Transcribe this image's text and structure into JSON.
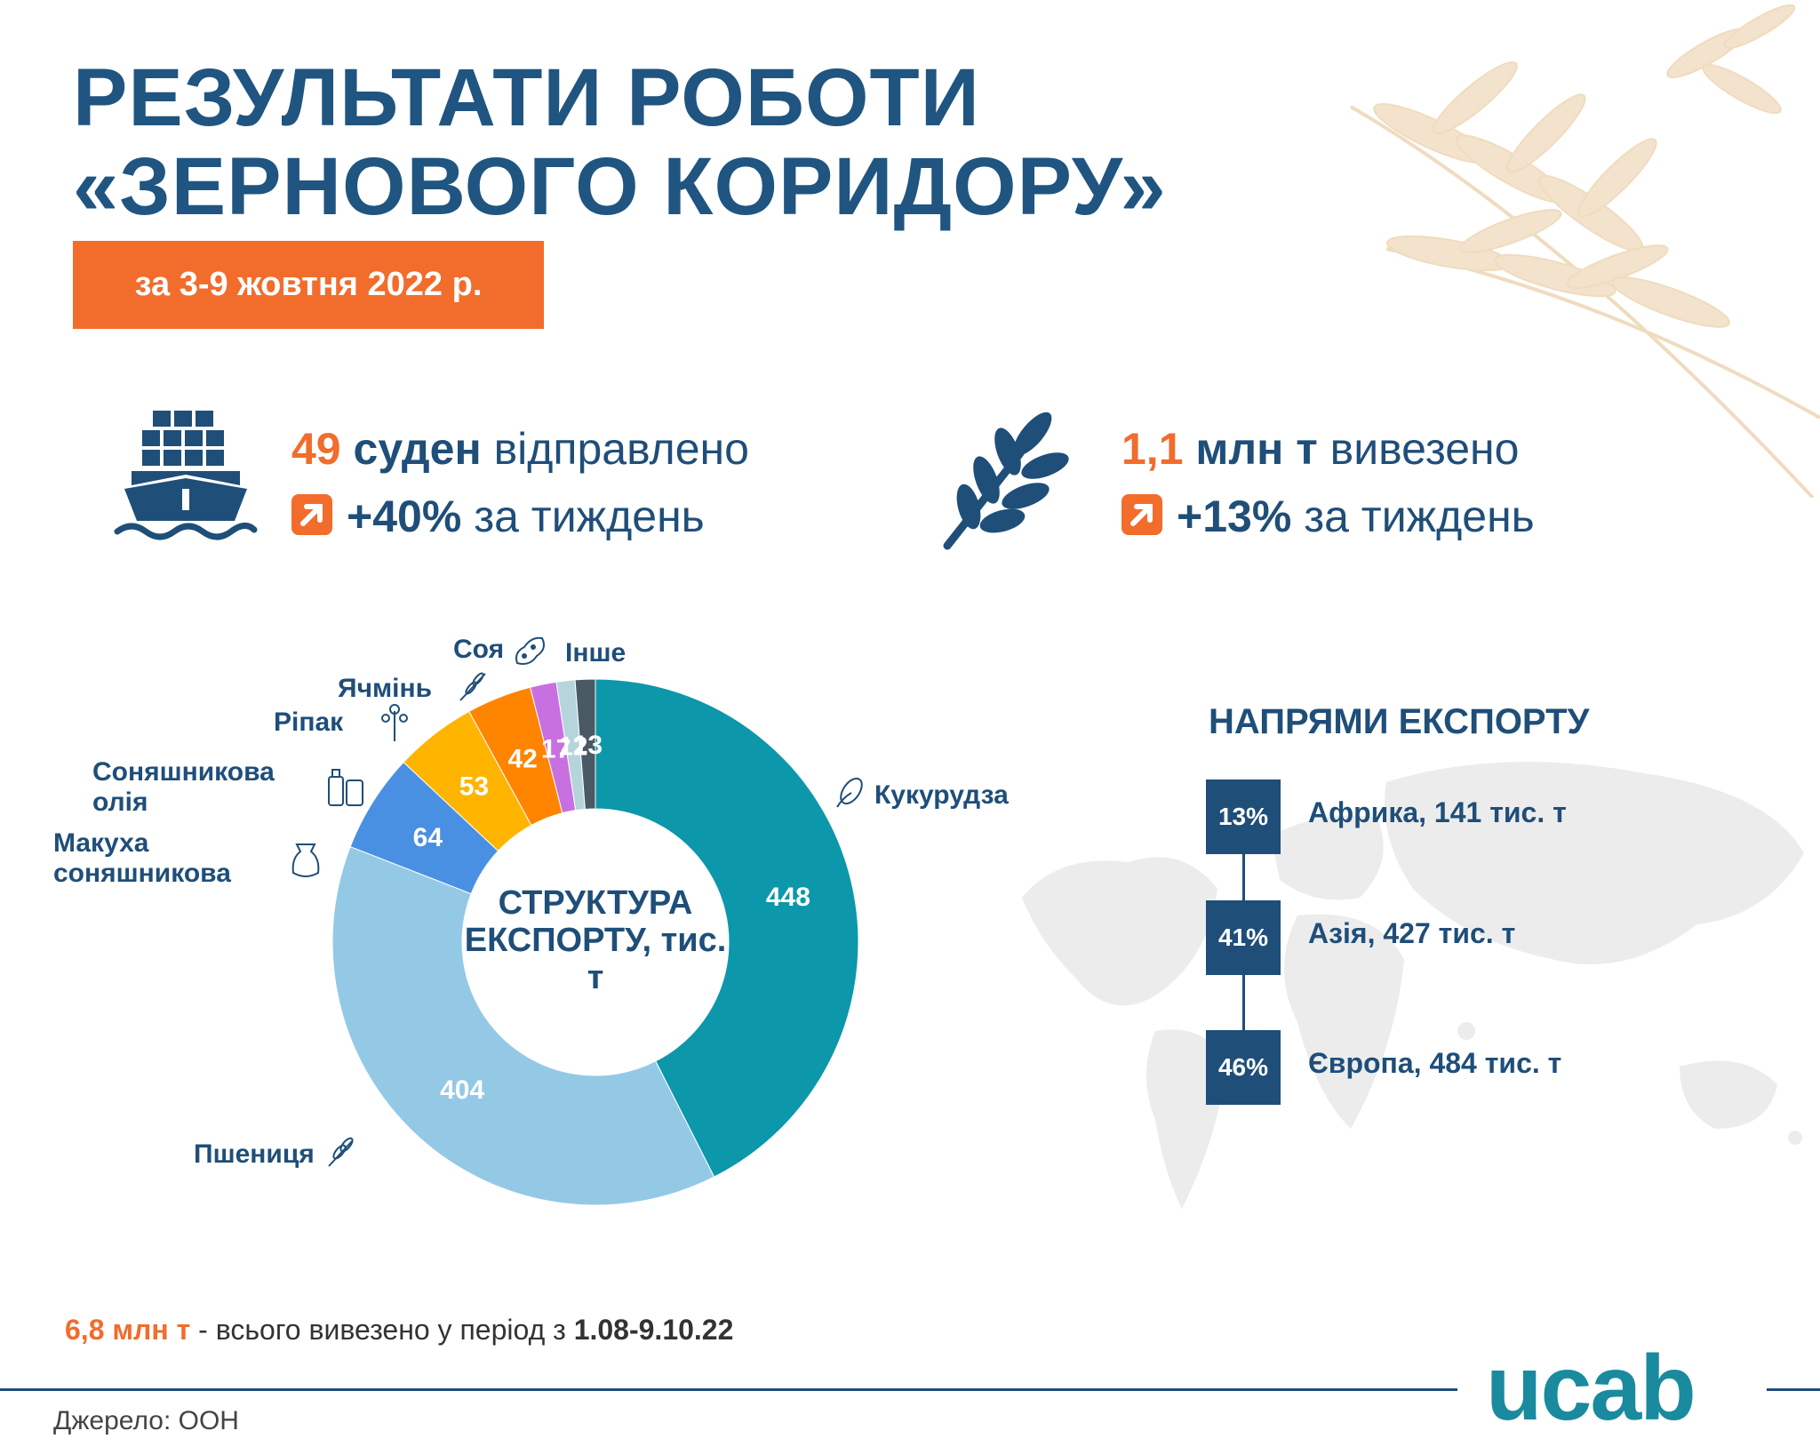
{
  "header": {
    "title_line1": "РЕЗУЛЬТАТИ РОБОТИ",
    "title_line2": "«ЗЕРНОВОГО КОРИДОРУ»",
    "date_range": "за 3-9 жовтня 2022 р."
  },
  "stats": {
    "ships": {
      "number": "49",
      "unit": "суден",
      "verb": "відправлено",
      "change": "+40%",
      "period": "за тиждень"
    },
    "tonnage": {
      "number": "1,1",
      "unit": "млн т",
      "verb": "вивезено",
      "change": "+13%",
      "period": "за тиждень"
    }
  },
  "chart_data": {
    "type": "pie",
    "title": "СТРУКТУРА ЕКСПОРТУ, тис. т",
    "slices": [
      {
        "label": "Кукурудза",
        "value": 448,
        "color": "#0c97aa"
      },
      {
        "label": "Пшениця",
        "value": 404,
        "color": "#94c9e6"
      },
      {
        "label": "Макуха соняшникова",
        "value": 64,
        "color": "#4a90e2"
      },
      {
        "label": "Соняшникова олія",
        "value": 53,
        "color": "#ffb400"
      },
      {
        "label": "Ріпак",
        "value": 42,
        "color": "#ff8400"
      },
      {
        "label": "Ячмінь",
        "value": 17,
        "color": "#c970e0"
      },
      {
        "label": "Соя",
        "value": 12,
        "color": "#b5d4dc"
      },
      {
        "label": "Інше",
        "value": 13,
        "color": "#495a64"
      }
    ]
  },
  "directions": {
    "title": "НАПРЯМИ ЕКСПОРТУ",
    "items": [
      {
        "percent": "13%",
        "label": "Африка, 141 тис. т"
      },
      {
        "percent": "41%",
        "label": "Азія, 427 тис. т"
      },
      {
        "percent": "46%",
        "label": "Європа, 484 тис. т"
      }
    ]
  },
  "footer": {
    "total_value": "6,8 млн т",
    "total_text": " - всього вивезено у період з ",
    "total_period": "1.08-9.10.22",
    "source": "Джерело: ООН",
    "logo": "ucab"
  },
  "colors": {
    "accent": "#f26c2c",
    "primary": "#1f4e79",
    "brand": "#1a8a9f"
  }
}
